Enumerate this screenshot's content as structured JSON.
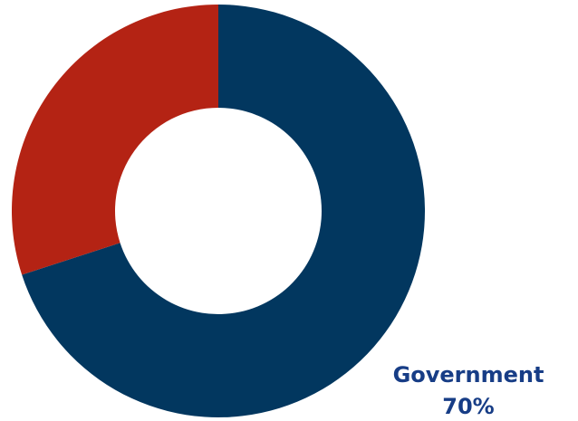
{
  "chart_data": {
    "type": "donut",
    "categories": [
      "Government",
      null
    ],
    "values": [
      70,
      30
    ],
    "value_labels": [
      "70%",
      null
    ],
    "colors": [
      "#02375f",
      "#b42314"
    ]
  }
}
